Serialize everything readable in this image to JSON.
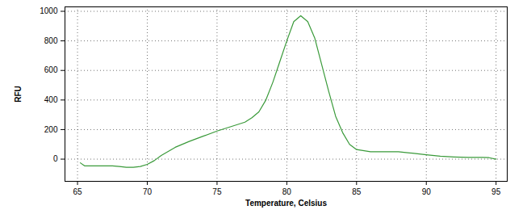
{
  "chart_data": {
    "type": "line",
    "x_label": "Temperature, Celsius",
    "y_label": "RFU",
    "x": [
      65.2,
      65.5,
      66,
      67,
      67.5,
      68,
      68.5,
      69,
      69.5,
      70,
      70.5,
      71,
      72,
      73,
      74,
      75,
      76,
      77,
      77.5,
      78,
      78.5,
      79,
      79.5,
      80,
      80.5,
      81,
      81.5,
      82,
      82.5,
      83,
      83.5,
      84,
      84.5,
      85,
      86,
      87,
      88,
      89,
      90,
      91,
      92,
      93,
      94,
      94.5,
      95
    ],
    "values": [
      -25,
      -45,
      -45,
      -45,
      -45,
      -50,
      -55,
      -55,
      -50,
      -35,
      -10,
      25,
      80,
      120,
      155,
      190,
      220,
      250,
      280,
      320,
      400,
      520,
      660,
      800,
      930,
      970,
      930,
      820,
      640,
      460,
      290,
      180,
      100,
      65,
      50,
      50,
      50,
      40,
      30,
      20,
      15,
      12,
      12,
      10,
      0
    ],
    "color": "#3a9a3a",
    "xlim": [
      64.1,
      95.8
    ],
    "xticks": [
      65,
      70,
      75,
      80,
      85,
      90,
      95
    ],
    "ylim": [
      -150,
      1030
    ],
    "yticks": [
      0,
      200,
      400,
      600,
      800,
      1000
    ],
    "grid": true
  }
}
